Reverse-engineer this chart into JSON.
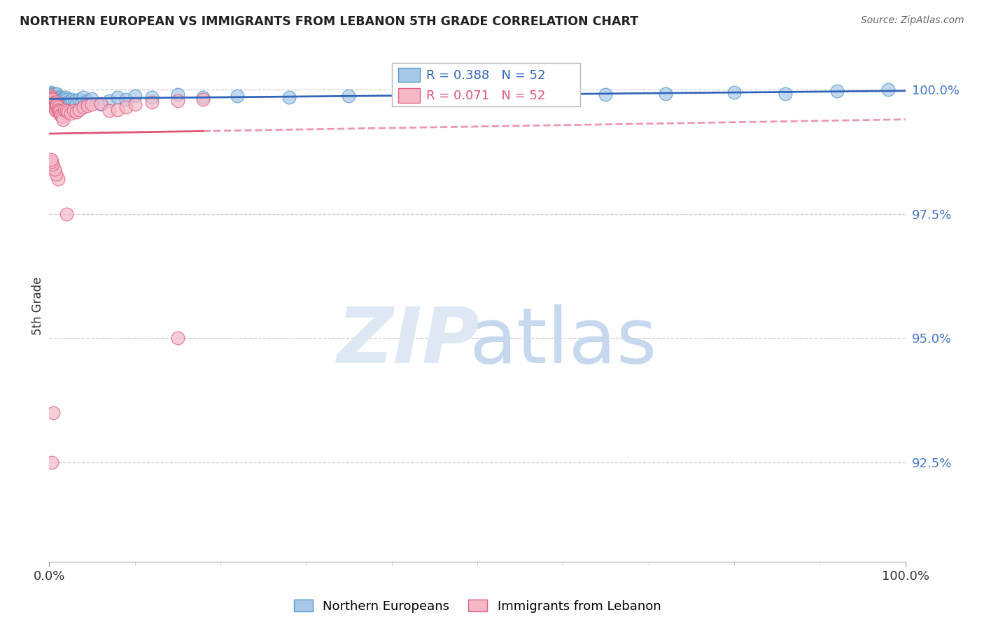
{
  "title": "NORTHERN EUROPEAN VS IMMIGRANTS FROM LEBANON 5TH GRADE CORRELATION CHART",
  "source": "Source: ZipAtlas.com",
  "ylabel": "5th Grade",
  "blue_R": 0.388,
  "blue_N": 52,
  "pink_R": 0.071,
  "pink_N": 52,
  "blue_face_color": "#a8c8e8",
  "blue_edge_color": "#5599cc",
  "pink_face_color": "#f4b8c8",
  "pink_edge_color": "#e06080",
  "blue_line_color": "#3366bb",
  "pink_line_color": "#dd5577",
  "legend_label_blue": "Northern Europeans",
  "legend_label_pink": "Immigrants from Lebanon",
  "xmin": 0.0,
  "xmax": 1.0,
  "ymin": 0.905,
  "ymax": 1.008,
  "yticks": [
    0.925,
    0.95,
    0.975,
    1.0
  ],
  "ytick_labels": [
    "92.5%",
    "95.0%",
    "97.5%",
    "100.0%"
  ],
  "xtick_labels": [
    "0.0%",
    "100.0%"
  ],
  "blue_scatter_x": [
    0.002,
    0.003,
    0.004,
    0.005,
    0.006,
    0.007,
    0.008,
    0.009,
    0.01,
    0.01,
    0.011,
    0.012,
    0.013,
    0.014,
    0.015,
    0.016,
    0.017,
    0.018,
    0.019,
    0.02,
    0.021,
    0.022,
    0.023,
    0.025,
    0.027,
    0.03,
    0.032,
    0.035,
    0.038,
    0.04,
    0.045,
    0.05,
    0.06,
    0.07,
    0.08,
    0.09,
    0.1,
    0.12,
    0.15,
    0.18,
    0.22,
    0.28,
    0.35,
    0.43,
    0.5,
    0.58,
    0.65,
    0.72,
    0.8,
    0.86,
    0.92,
    0.98
  ],
  "blue_scatter_y": [
    0.9995,
    0.9992,
    0.999,
    0.9988,
    0.9985,
    0.9988,
    0.999,
    0.9992,
    0.9985,
    0.998,
    0.9982,
    0.9978,
    0.9985,
    0.998,
    0.9982,
    0.9978,
    0.998,
    0.9982,
    0.9985,
    0.998,
    0.9975,
    0.9972,
    0.997,
    0.9975,
    0.998,
    0.9978,
    0.9972,
    0.998,
    0.9975,
    0.9985,
    0.9978,
    0.9982,
    0.997,
    0.9978,
    0.9985,
    0.998,
    0.9988,
    0.9985,
    0.999,
    0.9985,
    0.9988,
    0.9985,
    0.9988,
    0.999,
    0.9988,
    0.9992,
    0.999,
    0.9992,
    0.9995,
    0.9992,
    0.9998,
    1.0
  ],
  "pink_scatter_x": [
    0.001,
    0.002,
    0.003,
    0.003,
    0.004,
    0.004,
    0.005,
    0.005,
    0.006,
    0.006,
    0.007,
    0.007,
    0.008,
    0.008,
    0.009,
    0.009,
    0.01,
    0.01,
    0.011,
    0.012,
    0.013,
    0.014,
    0.015,
    0.016,
    0.018,
    0.02,
    0.022,
    0.025,
    0.028,
    0.032,
    0.035,
    0.04,
    0.045,
    0.05,
    0.06,
    0.07,
    0.08,
    0.09,
    0.1,
    0.12,
    0.15,
    0.18,
    0.01,
    0.008,
    0.006,
    0.004,
    0.003,
    0.002,
    0.15,
    0.02,
    0.005,
    0.003
  ],
  "pink_scatter_y": [
    0.9988,
    0.9985,
    0.9982,
    0.9978,
    0.998,
    0.9975,
    0.9972,
    0.997,
    0.9968,
    0.9965,
    0.9962,
    0.996,
    0.9958,
    0.9975,
    0.997,
    0.9968,
    0.9965,
    0.996,
    0.9958,
    0.9955,
    0.995,
    0.9948,
    0.9945,
    0.994,
    0.996,
    0.9958,
    0.9955,
    0.9952,
    0.9958,
    0.9955,
    0.996,
    0.9965,
    0.9968,
    0.997,
    0.9972,
    0.9958,
    0.996,
    0.9965,
    0.997,
    0.9975,
    0.9978,
    0.998,
    0.982,
    0.983,
    0.984,
    0.985,
    0.9855,
    0.986,
    0.95,
    0.975,
    0.935,
    0.925
  ]
}
